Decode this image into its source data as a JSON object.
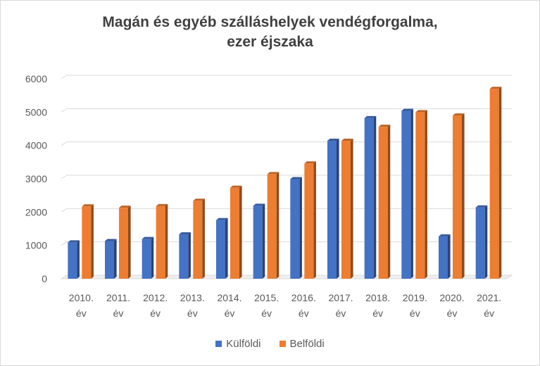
{
  "chart_data": {
    "type": "bar",
    "title_lines": [
      "Magán és egyéb szálláshelyek vendégforgalma,",
      "ezer éjszaka"
    ],
    "categories": [
      [
        "2010.",
        "év"
      ],
      [
        "2011.",
        "év"
      ],
      [
        "2012.",
        "év"
      ],
      [
        "2013.",
        "év"
      ],
      [
        "2014.",
        "év"
      ],
      [
        "2015.",
        "év"
      ],
      [
        "2016.",
        "év"
      ],
      [
        "2017.",
        "év"
      ],
      [
        "2018.",
        "év"
      ],
      [
        "2019.",
        "év"
      ],
      [
        "2020.",
        "év"
      ],
      [
        "2021.",
        "év"
      ]
    ],
    "series": [
      {
        "name": "Külföldi",
        "color": "#4472c4",
        "values": [
          1090,
          1130,
          1190,
          1330,
          1760,
          2190,
          2990,
          4140,
          4820,
          5040,
          1270,
          2140
        ]
      },
      {
        "name": "Belföldi",
        "color": "#ed7d31",
        "values": [
          2170,
          2130,
          2180,
          2340,
          2730,
          3140,
          3460,
          4140,
          4560,
          5000,
          4900,
          5700
        ]
      }
    ],
    "ylim": [
      0,
      6000
    ],
    "yticks": [
      0,
      1000,
      2000,
      3000,
      4000,
      5000,
      6000
    ],
    "grid": true,
    "legend_position": "bottom"
  }
}
